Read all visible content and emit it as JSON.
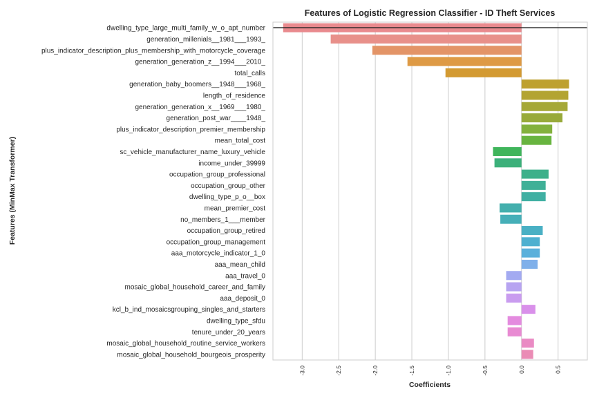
{
  "chart_data": {
    "type": "bar",
    "orientation": "horizontal",
    "title": "Features of Logistic Regression Classifier - ID Theft Services",
    "xlabel": "Coefficients",
    "ylabel": "Features (MinMax Transformer)",
    "xlim": [
      -3.4,
      0.9
    ],
    "xticks": [
      -3.0,
      -2.5,
      -2.0,
      -1.5,
      -1.0,
      -0.5,
      0.0,
      0.5
    ],
    "xtick_labels": [
      "-3.0",
      "-2.5",
      "-2.0",
      "-1.5",
      "-1.0",
      "-0.5",
      "0.0",
      "0.5"
    ],
    "grid": true,
    "categories": [
      "dwelling_type_large_multi_family_w_o_apt_number",
      "generation_millenials__1981___1993_",
      "plus_indicator_description_plus_membership_with_motorcycle_coverage",
      "generation_generation_z__1994___2010_",
      "total_calls",
      "generation_baby_boomers__1948___1968_",
      "length_of_residence",
      "generation_generation_x__1969___1980_",
      "generation_post_war____1948_",
      "plus_indicator_description_premier_membership",
      "mean_total_cost",
      "sc_vehicle_manufacturer_name_luxury_vehicle",
      "income_under_39999",
      "occupation_group_professional",
      "occupation_group_other",
      "dwelling_type_p_o__box",
      "mean_premier_cost",
      "no_members_1___member",
      "occupation_group_retired",
      "occupation_group_management",
      "aaa_motorcycle_indicator_1_0",
      "aaa_mean_child",
      "aaa_travel_0",
      "mosaic_global_household_career_and_family",
      "aaa_deposit_0",
      "kcl_b_ind_mosaicsgrouping_singles_and_starters",
      "dwelling_type_sfdu",
      "tenure_under_20_years",
      "mosaic_global_household_routine_service_workers",
      "mosaic_global_household_bourgeois_prosperity"
    ],
    "values": [
      -3.26,
      -2.61,
      -2.04,
      -1.56,
      -1.04,
      0.65,
      0.64,
      0.63,
      0.56,
      0.42,
      0.41,
      -0.39,
      -0.37,
      0.37,
      0.33,
      0.33,
      -0.3,
      -0.29,
      0.29,
      0.25,
      0.25,
      0.22,
      -0.21,
      -0.21,
      -0.21,
      0.19,
      -0.19,
      -0.19,
      0.17,
      0.16
    ],
    "colors": [
      "#e98a8e",
      "#e8908a",
      "#e39467",
      "#de9a45",
      "#d39a32",
      "#bea12f",
      "#b3a431",
      "#a5a837",
      "#98aa3a",
      "#83b13d",
      "#68b43f",
      "#3fb55b",
      "#3cb07a",
      "#3db08a",
      "#3fb097",
      "#41b0a3",
      "#44afad",
      "#46afb8",
      "#49b0c4",
      "#4eb0d0",
      "#5ab0db",
      "#7fb0ea",
      "#a3aaf1",
      "#b7a4f1",
      "#c99cef",
      "#d990ea",
      "#e48bdf",
      "#e88ad2",
      "#ea8bc4",
      "#ea8cb5"
    ]
  }
}
